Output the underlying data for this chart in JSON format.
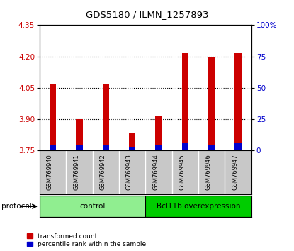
{
  "title": "GDS5180 / ILMN_1257893",
  "samples": [
    "GSM769940",
    "GSM769941",
    "GSM769942",
    "GSM769943",
    "GSM769944",
    "GSM769945",
    "GSM769946",
    "GSM769947"
  ],
  "transformed_counts": [
    4.065,
    3.9,
    4.065,
    3.835,
    3.915,
    4.215,
    4.2,
    4.215
  ],
  "percentile_ranks": [
    5,
    5,
    5,
    3,
    5,
    6,
    5,
    6
  ],
  "ylim_left": [
    3.75,
    4.35
  ],
  "ylim_right": [
    0,
    100
  ],
  "yticks_left": [
    3.75,
    3.9,
    4.05,
    4.2,
    4.35
  ],
  "yticks_right": [
    0,
    25,
    50,
    75,
    100
  ],
  "ytick_labels_right": [
    "0",
    "25",
    "50",
    "75",
    "100%"
  ],
  "bar_bottom": 3.75,
  "groups": [
    {
      "label": "control",
      "indices": [
        0,
        1,
        2,
        3
      ],
      "color": "#90ee90"
    },
    {
      "label": "Bcl11b overexpression",
      "indices": [
        4,
        5,
        6,
        7
      ],
      "color": "#00cc00"
    }
  ],
  "protocol_label": "protocol",
  "legend_red_label": "transformed count",
  "legend_blue_label": "percentile rank within the sample",
  "red_color": "#cc0000",
  "blue_color": "#0000cc",
  "bar_width": 0.25,
  "plot_bg_color": "#ffffff",
  "tick_label_color_left": "#cc0000",
  "tick_label_color_right": "#0000cc",
  "label_area_color": "#c8c8c8",
  "control_color": "#b8f0b8",
  "overexp_color": "#40dd40"
}
